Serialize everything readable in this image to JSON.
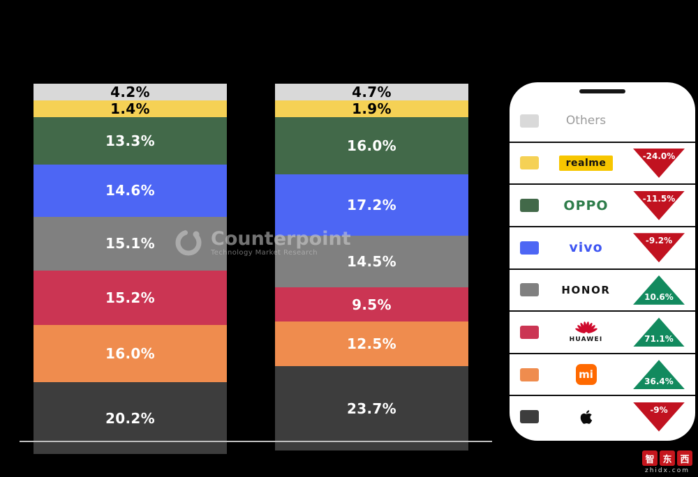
{
  "chart_data": {
    "type": "bar",
    "stacked": true,
    "title": "",
    "unit": "%",
    "categories": [
      "",
      ""
    ],
    "series_order": "top-to-bottom",
    "series": [
      {
        "name": "Others",
        "color": "#d9d9d9",
        "label_color": "#000000",
        "values": [
          4.2,
          4.7
        ]
      },
      {
        "name": "realme",
        "color": "#f5d155",
        "label_color": "#000000",
        "values": [
          1.4,
          1.9
        ]
      },
      {
        "name": "OPPO",
        "color": "#426949",
        "label_color": "#ffffff",
        "values": [
          13.3,
          16.0
        ]
      },
      {
        "name": "vivo",
        "color": "#4d66f4",
        "label_color": "#ffffff",
        "values": [
          14.6,
          17.2
        ]
      },
      {
        "name": "HONOR",
        "color": "#808080",
        "label_color": "#ffffff",
        "values": [
          15.1,
          14.5
        ]
      },
      {
        "name": "HUAWEI",
        "color": "#cb3553",
        "label_color": "#ffffff",
        "values": [
          15.2,
          9.5
        ]
      },
      {
        "name": "Xiaomi",
        "color": "#ef8c4e",
        "label_color": "#ffffff",
        "values": [
          16.0,
          12.5
        ]
      },
      {
        "name": "Apple",
        "color": "#3d3d3d",
        "label_color": "#ffffff",
        "values": [
          20.2,
          23.7
        ]
      }
    ],
    "legend_position": "right-phone-panel",
    "grid": false
  },
  "legend": {
    "rows": [
      {
        "name": "Others",
        "swatch": "#d9d9d9",
        "label": "Others",
        "change": "",
        "trend": "none"
      },
      {
        "name": "realme",
        "swatch": "#f5d155",
        "label": "realme",
        "change": "-24.0%",
        "trend": "down"
      },
      {
        "name": "OPPO",
        "swatch": "#426949",
        "label": "OPPO",
        "change": "-11.5%",
        "trend": "down"
      },
      {
        "name": "vivo",
        "swatch": "#4d66f4",
        "label": "vivo",
        "change": "-9.2%",
        "trend": "down"
      },
      {
        "name": "HONOR",
        "swatch": "#808080",
        "label": "HONOR",
        "change": "10.6%",
        "trend": "up"
      },
      {
        "name": "HUAWEI",
        "swatch": "#cb3553",
        "label": "HUAWEI",
        "change": "71.1%",
        "trend": "up"
      },
      {
        "name": "Xiaomi",
        "swatch": "#ef8c4e",
        "label": "mi",
        "change": "36.4%",
        "trend": "up"
      },
      {
        "name": "Apple",
        "swatch": "#3d3d3d",
        "label": "",
        "change": "-9%",
        "trend": "down"
      }
    ]
  },
  "colors": {
    "trend_up": "#128a5e",
    "trend_down": "#c11220",
    "background": "#000000"
  },
  "watermark": {
    "brand": "Counterpoint",
    "tagline": "Technology Market Research"
  },
  "footer": {
    "chars": [
      "智",
      "东",
      "西"
    ],
    "site": "zhidx.com"
  }
}
